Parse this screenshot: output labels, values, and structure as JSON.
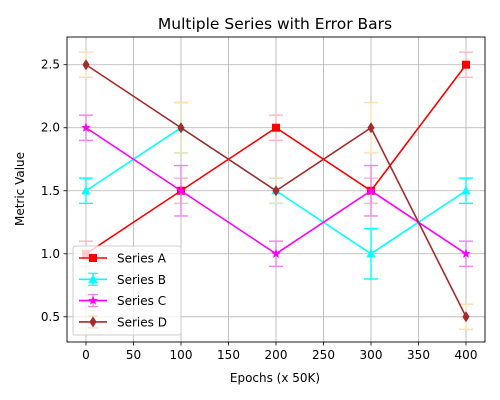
{
  "chart_data": {
    "type": "line",
    "title": "Multiple Series with Error Bars",
    "xlabel": "Epochs (x 50K)",
    "ylabel": "Metric Value",
    "x": [
      0,
      100,
      200,
      300,
      400
    ],
    "xlim": [
      -20,
      420
    ],
    "ylim": [
      0.3,
      2.72
    ],
    "xticks": [
      "0",
      "50",
      "100",
      "150",
      "200",
      "250",
      "300",
      "350",
      "400"
    ],
    "yticks": [
      "0.5",
      "1.0",
      "1.5",
      "2.0",
      "2.5"
    ],
    "grid": true,
    "legend_position": "lower-left",
    "series": [
      {
        "name": "Series A",
        "color": "#ff0000",
        "ecolor": "#ffb6c1",
        "marker": "square",
        "values": [
          1.0,
          1.5,
          2.0,
          1.5,
          2.5
        ],
        "errors": [
          0.1,
          0.1,
          0.1,
          0.1,
          0.1
        ]
      },
      {
        "name": "Series B",
        "color": "#00ffff",
        "ecolor": "#00ffff",
        "marker": "triangle",
        "values": [
          1.5,
          2.0,
          1.5,
          1.0,
          1.5
        ],
        "errors": [
          0.1,
          0.2,
          0.1,
          0.2,
          0.1
        ]
      },
      {
        "name": "Series C",
        "color": "#ff00ff",
        "ecolor": "#ee82ee",
        "marker": "star",
        "values": [
          2.0,
          1.5,
          1.0,
          1.5,
          1.0
        ],
        "errors": [
          0.1,
          0.2,
          0.1,
          0.2,
          0.1
        ]
      },
      {
        "name": "Series D",
        "color": "#a52a2a",
        "ecolor": "#ffdead",
        "marker": "diamond",
        "values": [
          2.5,
          2.0,
          1.5,
          2.0,
          0.5
        ],
        "errors": [
          0.1,
          0.2,
          0.1,
          0.2,
          0.1
        ]
      }
    ]
  }
}
